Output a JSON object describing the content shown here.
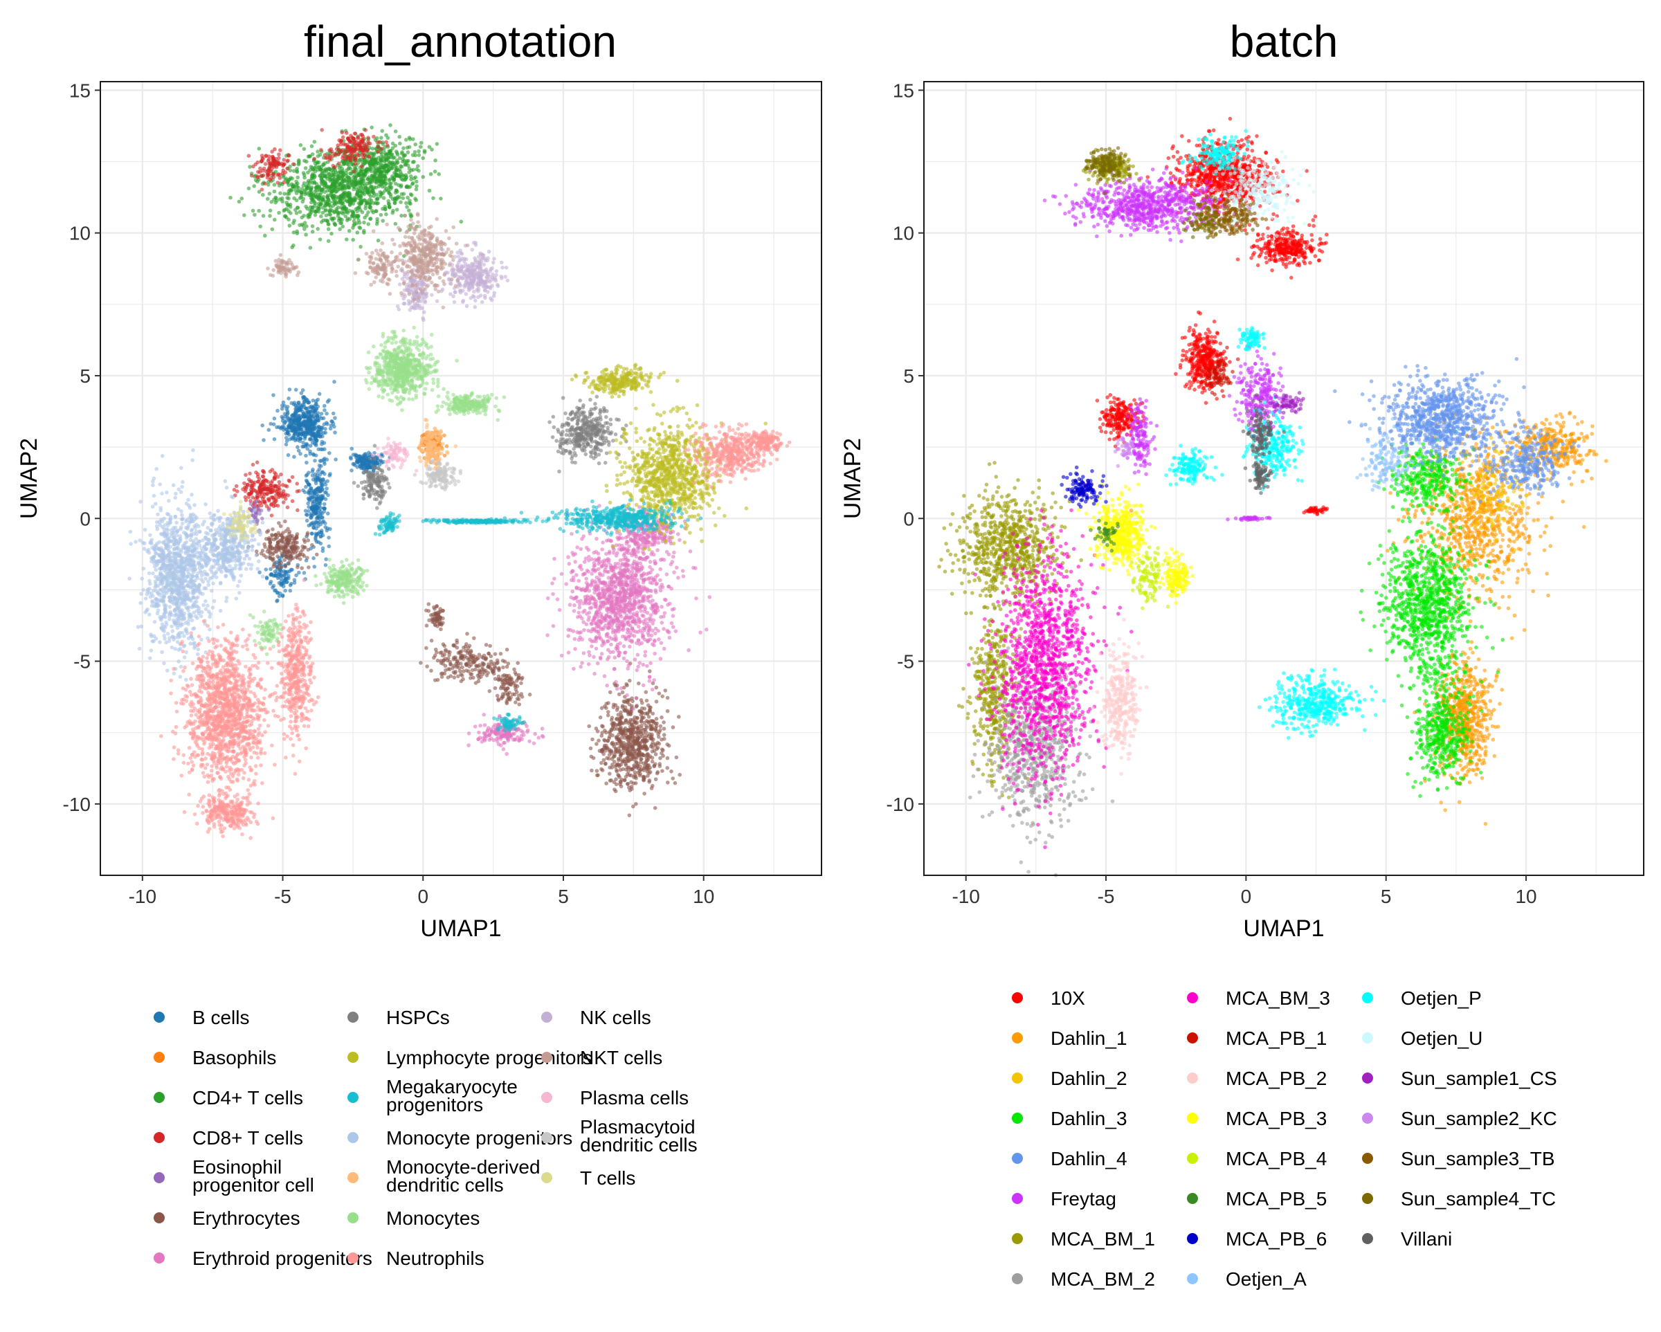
{
  "chart_data": [
    {
      "type": "scatter",
      "title": "final_annotation",
      "xlabel": "UMAP1",
      "ylabel": "UMAP2",
      "xlim": [
        -11.5,
        14.2
      ],
      "ylim": [
        -12.5,
        15.3
      ],
      "xticks": [
        "-10",
        "-5",
        "0",
        "5",
        "10"
      ],
      "yticks": [
        "15",
        "10",
        "5",
        "0",
        "-5",
        "-10"
      ],
      "grid": true,
      "legend_position": "bottom",
      "series": [
        {
          "name": "B cells",
          "color": "#1f77b4",
          "clusters": [
            [
              -4.2,
              3.3,
              0.8,
              0.8,
              90
            ],
            [
              -3.8,
              0.5,
              0.4,
              1.5,
              50
            ],
            [
              -2.0,
              2.0,
              0.5,
              0.3,
              30
            ],
            [
              -5.0,
              -2.0,
              0.5,
              0.6,
              20
            ]
          ]
        },
        {
          "name": "Basophils",
          "color": "#ff7f0e",
          "clusters": [
            [
              0.3,
              2.6,
              0.4,
              0.4,
              20
            ]
          ]
        },
        {
          "name": "CD4+ T cells",
          "color": "#2ca02c",
          "clusters": [
            [
              -3.0,
              11.5,
              2.3,
              1.3,
              190
            ],
            [
              -1.5,
              12.3,
              1.3,
              1.0,
              80
            ]
          ]
        },
        {
          "name": "CD8+ T cells",
          "color": "#d62728",
          "clusters": [
            [
              -2.5,
              13.0,
              0.8,
              0.5,
              30
            ],
            [
              -5.3,
              12.3,
              0.6,
              0.5,
              20
            ],
            [
              -5.6,
              1.0,
              0.8,
              0.6,
              40
            ]
          ]
        },
        {
          "name": "Eosinophil progenitor cell",
          "color": "#9467bd",
          "clusters": [
            [
              -6.0,
              0.2,
              0.3,
              0.3,
              6
            ]
          ]
        },
        {
          "name": "Erythrocytes",
          "color": "#8c564b",
          "clusters": [
            [
              7.5,
              -7.8,
              1.1,
              1.5,
              130
            ],
            [
              -5.0,
              -1.0,
              0.8,
              0.6,
              40
            ],
            [
              1.5,
              -5.0,
              1.2,
              0.6,
              40
            ],
            [
              0.5,
              -3.5,
              0.3,
              0.4,
              12
            ],
            [
              3.0,
              -5.8,
              0.5,
              0.7,
              18
            ]
          ]
        },
        {
          "name": "Erythroid progenitors",
          "color": "#e377c2",
          "clusters": [
            [
              7.0,
              -2.8,
              1.6,
              2.0,
              220
            ],
            [
              8.0,
              -0.5,
              1.0,
              0.7,
              40
            ],
            [
              2.9,
              -7.5,
              0.9,
              0.4,
              30
            ]
          ]
        },
        {
          "name": "HSPCs",
          "color": "#7f7f7f",
          "clusters": [
            [
              5.8,
              3.0,
              0.9,
              0.8,
              70
            ],
            [
              -1.7,
              1.2,
              0.4,
              0.6,
              25
            ]
          ]
        },
        {
          "name": "Lymphocyte progenitors",
          "color": "#bcbd22",
          "clusters": [
            [
              8.8,
              1.5,
              1.5,
              1.6,
              170
            ],
            [
              7.0,
              4.8,
              1.0,
              0.4,
              50
            ]
          ]
        },
        {
          "name": "Megakaryocyte progenitors",
          "color": "#17becf",
          "clusters": [
            [
              7.0,
              0.0,
              1.8,
              0.4,
              90
            ],
            [
              2.0,
              -0.1,
              1.5,
              0.05,
              40
            ],
            [
              -1.2,
              -0.2,
              0.3,
              0.3,
              15
            ],
            [
              3.0,
              -7.2,
              0.4,
              0.3,
              12
            ]
          ]
        },
        {
          "name": "Monocyte progenitors",
          "color": "#aec7e8",
          "clusters": [
            [
              -8.8,
              -2.0,
              1.0,
              2.3,
              200
            ],
            [
              -7.0,
              -1.0,
              0.9,
              1.2,
              80
            ]
          ]
        },
        {
          "name": "Monocyte-derived dendritic cells",
          "color": "#ffbb78",
          "clusters": [
            [
              0.3,
              2.5,
              0.4,
              0.6,
              30
            ]
          ]
        },
        {
          "name": "Monocytes",
          "color": "#98df8a",
          "clusters": [
            [
              -0.7,
              5.2,
              1.0,
              0.9,
              120
            ],
            [
              1.6,
              4.0,
              0.8,
              0.3,
              40
            ],
            [
              -2.8,
              -2.2,
              0.6,
              0.5,
              40
            ],
            [
              -5.5,
              -4.0,
              0.4,
              0.5,
              15
            ]
          ]
        },
        {
          "name": "Neutrophils",
          "color": "#ff9896",
          "clusters": [
            [
              -7.0,
              -6.8,
              1.3,
              2.2,
              250
            ],
            [
              -4.5,
              -5.5,
              0.5,
              2.0,
              80
            ],
            [
              11.0,
              2.3,
              1.1,
              0.8,
              80
            ],
            [
              12.2,
              2.7,
              0.5,
              0.3,
              30
            ],
            [
              -7.0,
              -10.3,
              0.8,
              0.5,
              50
            ]
          ]
        },
        {
          "name": "NK cells",
          "color": "#c5b0d5",
          "clusters": [
            [
              1.8,
              8.5,
              0.8,
              0.7,
              60
            ],
            [
              -0.3,
              8.0,
              0.5,
              0.8,
              30
            ]
          ]
        },
        {
          "name": "NKT cells",
          "color": "#c49c94",
          "clusters": [
            [
              0.0,
              9.2,
              0.9,
              1.0,
              70
            ],
            [
              -1.5,
              8.8,
              0.5,
              0.5,
              20
            ],
            [
              -5.0,
              8.8,
              0.4,
              0.3,
              12
            ]
          ]
        },
        {
          "name": "Plasma cells",
          "color": "#f7b6d2",
          "clusters": [
            [
              -1.0,
              2.2,
              0.5,
              0.4,
              15
            ]
          ]
        },
        {
          "name": "Plasmacytoid dendritic cells",
          "color": "#c7c7c7",
          "clusters": [
            [
              0.6,
              1.5,
              0.5,
              0.4,
              25
            ]
          ]
        },
        {
          "name": "T cells",
          "color": "#dbdb8d",
          "clusters": [
            [
              -6.5,
              -0.2,
              0.5,
              0.5,
              15
            ]
          ]
        }
      ]
    },
    {
      "type": "scatter",
      "title": "batch",
      "xlabel": "UMAP1",
      "ylabel": "UMAP2",
      "xlim": [
        -11.5,
        14.2
      ],
      "ylim": [
        -12.5,
        15.3
      ],
      "xticks": [
        "-10",
        "-5",
        "0",
        "5",
        "10"
      ],
      "yticks": [
        "15",
        "10",
        "5",
        "0",
        "-5",
        "-10"
      ],
      "grid": true,
      "legend_position": "bottom",
      "series": [
        {
          "name": "10X",
          "color": "#ff0000",
          "clusters": [
            [
              -0.8,
              12.0,
              1.5,
              1.0,
              140
            ],
            [
              1.5,
              9.5,
              1.0,
              0.6,
              60
            ],
            [
              -1.5,
              5.5,
              0.6,
              0.9,
              70
            ],
            [
              -4.5,
              3.5,
              0.6,
              0.6,
              40
            ],
            [
              2.5,
              0.3,
              0.4,
              0.1,
              8
            ]
          ]
        },
        {
          "name": "Dahlin_1",
          "color": "#ff9a00",
          "clusters": [
            [
              8.2,
              0.0,
              1.8,
              2.3,
              160
            ],
            [
              7.8,
              -7.0,
              0.9,
              1.8,
              120
            ],
            [
              11.0,
              2.5,
              1.3,
              0.8,
              60
            ]
          ]
        },
        {
          "name": "Dahlin_2",
          "color": "#f5c400",
          "clusters": [
            [
              9.0,
              1.0,
              1.0,
              1.5,
              25
            ]
          ]
        },
        {
          "name": "Dahlin_3",
          "color": "#00e800",
          "clusters": [
            [
              6.5,
              -3.0,
              1.4,
              2.3,
              180
            ],
            [
              7.0,
              -7.5,
              0.9,
              1.6,
              80
            ],
            [
              6.5,
              1.5,
              1.2,
              1.0,
              60
            ]
          ]
        },
        {
          "name": "Dahlin_4",
          "color": "#6495ed",
          "clusters": [
            [
              7.0,
              3.5,
              1.8,
              1.2,
              160
            ],
            [
              10.0,
              2.0,
              1.3,
              1.0,
              60
            ]
          ]
        },
        {
          "name": "Freytag",
          "color": "#cc33ff",
          "clusters": [
            [
              -3.5,
              11.0,
              2.2,
              0.8,
              140
            ],
            [
              0.5,
              4.3,
              0.7,
              1.2,
              50
            ],
            [
              -3.8,
              2.8,
              0.4,
              1.0,
              30
            ],
            [
              0.2,
              0.0,
              0.5,
              0.05,
              8
            ]
          ]
        },
        {
          "name": "MCA_BM_1",
          "color": "#999900",
          "clusters": [
            [
              -8.5,
              -1.0,
              1.5,
              1.6,
              140
            ],
            [
              -9.0,
              -6.0,
              0.7,
              2.5,
              80
            ],
            [
              -4.8,
              12.3,
              0.7,
              0.4,
              30
            ]
          ]
        },
        {
          "name": "MCA_BM_2",
          "color": "#9e9e9e",
          "clusters": [
            [
              -7.5,
              -8.0,
              1.5,
              2.5,
              130
            ]
          ]
        },
        {
          "name": "MCA_BM_3",
          "color": "#ff00cc",
          "clusters": [
            [
              -7.2,
              -5.0,
              1.5,
              3.5,
              240
            ]
          ]
        },
        {
          "name": "MCA_PB_1",
          "color": "#cc1100",
          "clusters": [
            [
              -1.0,
              5.0,
              0.4,
              0.5,
              15
            ]
          ]
        },
        {
          "name": "MCA_PB_2",
          "color": "#ffcccc",
          "clusters": [
            [
              -4.5,
              -6.5,
              0.6,
              1.5,
              60
            ]
          ]
        },
        {
          "name": "MCA_PB_3",
          "color": "#ffff00",
          "clusters": [
            [
              -4.5,
              -0.5,
              0.8,
              1.0,
              90
            ],
            [
              -2.5,
              -2.0,
              0.4,
              0.6,
              30
            ]
          ]
        },
        {
          "name": "MCA_PB_4",
          "color": "#c8f000",
          "clusters": [
            [
              -3.5,
              -2.0,
              0.5,
              0.8,
              20
            ]
          ]
        },
        {
          "name": "MCA_PB_5",
          "color": "#3a8a23",
          "clusters": [
            [
              -5.0,
              -0.5,
              0.4,
              0.4,
              8
            ]
          ]
        },
        {
          "name": "MCA_PB_6",
          "color": "#0000cc",
          "clusters": [
            [
              -5.8,
              1.0,
              0.6,
              0.5,
              25
            ]
          ]
        },
        {
          "name": "Oetjen_A",
          "color": "#8ec5ff",
          "clusters": [
            [
              5.0,
              2.0,
              0.8,
              1.0,
              25
            ]
          ]
        },
        {
          "name": "Oetjen_P",
          "color": "#00ffff",
          "clusters": [
            [
              2.5,
              -6.5,
              1.3,
              0.8,
              80
            ],
            [
              1.0,
              2.5,
              0.8,
              1.0,
              50
            ],
            [
              -2.0,
              1.8,
              0.6,
              0.5,
              30
            ],
            [
              0.2,
              6.3,
              0.4,
              0.3,
              15
            ],
            [
              -1.0,
              12.8,
              0.8,
              0.5,
              30
            ]
          ]
        },
        {
          "name": "Oetjen_U",
          "color": "#ccf8ff",
          "clusters": [
            [
              0.5,
              11.5,
              1.2,
              1.0,
              50
            ]
          ]
        },
        {
          "name": "Sun_sample1_CS",
          "color": "#a020c0",
          "clusters": [
            [
              1.5,
              4.0,
              0.5,
              0.3,
              12
            ]
          ]
        },
        {
          "name": "Sun_sample2_KC",
          "color": "#cc88ee",
          "clusters": [
            [
              -4.3,
              2.5,
              0.3,
              0.4,
              8
            ]
          ]
        },
        {
          "name": "Sun_sample3_TB",
          "color": "#8b5a00",
          "clusters": [
            [
              -0.5,
              10.5,
              0.8,
              0.6,
              30
            ]
          ]
        },
        {
          "name": "Sun_sample4_TC",
          "color": "#7a6a00",
          "clusters": [
            [
              -5.0,
              12.4,
              0.7,
              0.5,
              30
            ],
            [
              -1.5,
              10.5,
              0.6,
              0.5,
              20
            ]
          ]
        },
        {
          "name": "Villani",
          "color": "#606060",
          "clusters": [
            [
              0.5,
              3.0,
              0.4,
              0.8,
              25
            ],
            [
              0.5,
              1.5,
              0.3,
              0.5,
              15
            ]
          ]
        }
      ]
    }
  ]
}
